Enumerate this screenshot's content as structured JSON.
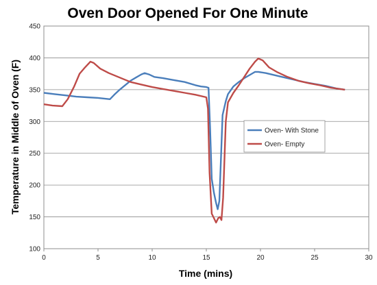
{
  "chart_data": {
    "type": "line",
    "title": "Oven Door Opened For One Minute",
    "xlabel": "Time (mins)",
    "ylabel": "Temperature in Middle of Oven (F)",
    "xlim": [
      0,
      30
    ],
    "ylim": [
      100,
      450
    ],
    "x_ticks": [
      "0",
      "5",
      "10",
      "15",
      "20",
      "25",
      "30"
    ],
    "y_ticks": [
      "100",
      "150",
      "200",
      "250",
      "300",
      "350",
      "400",
      "450"
    ],
    "grid": "horizontal",
    "legend_position": "right",
    "series": [
      {
        "name": "Oven- With Stone",
        "color": "#4a7ebb",
        "points": [
          [
            0,
            345
          ],
          [
            1,
            343
          ],
          [
            2,
            341
          ],
          [
            3,
            339
          ],
          [
            4,
            338
          ],
          [
            5,
            337
          ],
          [
            6.1,
            335
          ],
          [
            6.5,
            342
          ],
          [
            7,
            350
          ],
          [
            7.5,
            357
          ],
          [
            8,
            364
          ],
          [
            8.5,
            369
          ],
          [
            9,
            374
          ],
          [
            9.3,
            376
          ],
          [
            9.7,
            374
          ],
          [
            10.2,
            370
          ],
          [
            11,
            368
          ],
          [
            12,
            365
          ],
          [
            13,
            362
          ],
          [
            14,
            357
          ],
          [
            14.5,
            355
          ],
          [
            15,
            354
          ],
          [
            15.2,
            353
          ],
          [
            15.35,
            290
          ],
          [
            15.5,
            210
          ],
          [
            15.7,
            188
          ],
          [
            15.9,
            172
          ],
          [
            16.05,
            162
          ],
          [
            16.2,
            175
          ],
          [
            16.35,
            240
          ],
          [
            16.5,
            310
          ],
          [
            16.8,
            332
          ],
          [
            17,
            343
          ],
          [
            17.5,
            355
          ],
          [
            18,
            362
          ],
          [
            18.5,
            368
          ],
          [
            19,
            373
          ],
          [
            19.5,
            378
          ],
          [
            19.8,
            378
          ],
          [
            20.5,
            376
          ],
          [
            21,
            374
          ],
          [
            22,
            370
          ],
          [
            23,
            366
          ],
          [
            24,
            362
          ],
          [
            25,
            359
          ],
          [
            26,
            356
          ],
          [
            27,
            352
          ],
          [
            27.8,
            350
          ]
        ]
      },
      {
        "name": "Oven- Empty",
        "color": "#be4b48",
        "points": [
          [
            0,
            327
          ],
          [
            0.8,
            325
          ],
          [
            1.7,
            324
          ],
          [
            2.2,
            335
          ],
          [
            2.8,
            355
          ],
          [
            3.3,
            375
          ],
          [
            3.8,
            385
          ],
          [
            4.3,
            394
          ],
          [
            4.6,
            392
          ],
          [
            5.2,
            383
          ],
          [
            6,
            376
          ],
          [
            7,
            369
          ],
          [
            8,
            362
          ],
          [
            9,
            358
          ],
          [
            10,
            354
          ],
          [
            11,
            351
          ],
          [
            12,
            348
          ],
          [
            13,
            345
          ],
          [
            14,
            342
          ],
          [
            15,
            338
          ],
          [
            15.15,
            320
          ],
          [
            15.3,
            220
          ],
          [
            15.5,
            155
          ],
          [
            15.7,
            148
          ],
          [
            15.9,
            141
          ],
          [
            16.1,
            148
          ],
          [
            16.25,
            150
          ],
          [
            16.4,
            145
          ],
          [
            16.55,
            180
          ],
          [
            16.8,
            300
          ],
          [
            17,
            330
          ],
          [
            17.5,
            345
          ],
          [
            18,
            357
          ],
          [
            18.5,
            370
          ],
          [
            19,
            383
          ],
          [
            19.5,
            394
          ],
          [
            19.8,
            399
          ],
          [
            20.2,
            396
          ],
          [
            20.8,
            385
          ],
          [
            21.5,
            378
          ],
          [
            22.5,
            370
          ],
          [
            23.5,
            364
          ],
          [
            24.5,
            360
          ],
          [
            25.5,
            357
          ],
          [
            26.5,
            353
          ],
          [
            27.8,
            350
          ]
        ]
      }
    ]
  }
}
